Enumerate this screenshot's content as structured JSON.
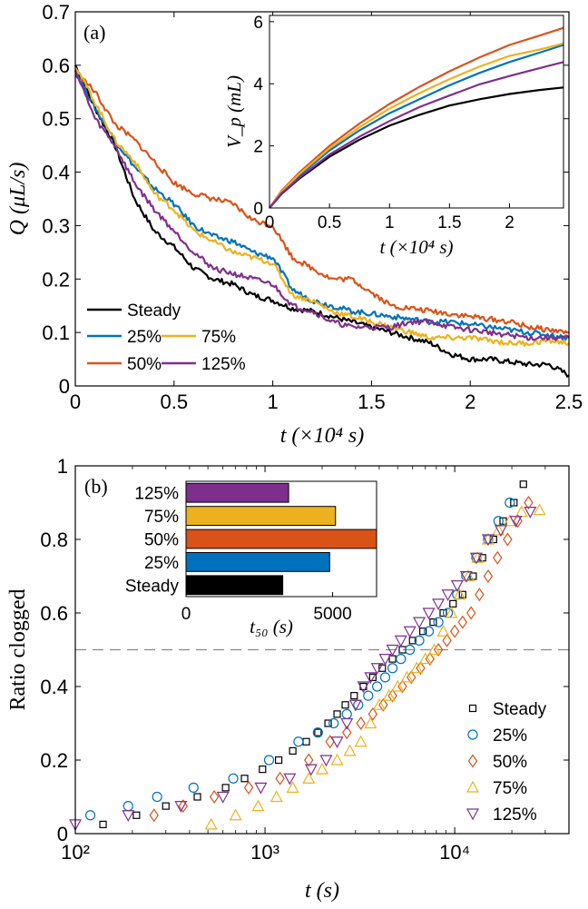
{
  "chart_data": [
    {
      "panel_label": "(a)",
      "type": "line",
      "xlabel": "t (×10⁴ s)",
      "ylabel": "Q (μL/s)",
      "xlim": [
        0,
        2.5
      ],
      "ylim": [
        0,
        0.7
      ],
      "xticks": [
        "0",
        "0.5",
        "1",
        "1.5",
        "2",
        "2.5"
      ],
      "yticks": [
        "0",
        "0.1",
        "0.2",
        "0.3",
        "0.4",
        "0.5",
        "0.6",
        "0.7"
      ],
      "legend_position": "bottom-left",
      "x": [
        0,
        0.1,
        0.2,
        0.3,
        0.4,
        0.5,
        0.6,
        0.7,
        0.8,
        0.9,
        1.0,
        1.1,
        1.2,
        1.3,
        1.4,
        1.5,
        1.6,
        1.7,
        1.8,
        1.9,
        2.0,
        2.1,
        2.2,
        2.3,
        2.4,
        2.5
      ],
      "series": [
        {
          "name": "Steady",
          "color": "#000000",
          "values": [
            0.6,
            0.52,
            0.45,
            0.35,
            0.29,
            0.26,
            0.22,
            0.2,
            0.19,
            0.17,
            0.16,
            0.145,
            0.14,
            0.13,
            0.12,
            0.11,
            0.1,
            0.09,
            0.08,
            0.06,
            0.05,
            0.05,
            0.045,
            0.04,
            0.04,
            0.02
          ]
        },
        {
          "name": "25%",
          "color": "#0072bd",
          "values": [
            0.59,
            0.52,
            0.46,
            0.41,
            0.37,
            0.34,
            0.3,
            0.28,
            0.27,
            0.25,
            0.24,
            0.18,
            0.16,
            0.15,
            0.14,
            0.135,
            0.13,
            0.125,
            0.12,
            0.12,
            0.115,
            0.11,
            0.105,
            0.1,
            0.095,
            0.09
          ]
        },
        {
          "name": "50%",
          "color": "#d95319",
          "values": [
            0.59,
            0.55,
            0.49,
            0.46,
            0.42,
            0.38,
            0.36,
            0.35,
            0.34,
            0.31,
            0.3,
            0.24,
            0.22,
            0.2,
            0.2,
            0.175,
            0.15,
            0.145,
            0.14,
            0.135,
            0.13,
            0.125,
            0.12,
            0.11,
            0.105,
            0.1
          ]
        },
        {
          "name": "75%",
          "color": "#edb120",
          "values": [
            0.6,
            0.53,
            0.46,
            0.42,
            0.36,
            0.33,
            0.29,
            0.27,
            0.25,
            0.24,
            0.23,
            0.17,
            0.16,
            0.14,
            0.13,
            0.12,
            0.11,
            0.1,
            0.09,
            0.09,
            0.09,
            0.085,
            0.08,
            0.08,
            0.085,
            0.08
          ]
        },
        {
          "name": "125%",
          "color": "#7e2f8e",
          "values": [
            0.59,
            0.5,
            0.45,
            0.38,
            0.33,
            0.29,
            0.25,
            0.22,
            0.21,
            0.2,
            0.19,
            0.15,
            0.14,
            0.12,
            0.11,
            0.11,
            0.11,
            0.12,
            0.12,
            0.11,
            0.105,
            0.1,
            0.095,
            0.09,
            0.09,
            0.09
          ]
        }
      ],
      "legend_entries": [
        "Steady",
        "25%",
        "75%",
        "50%",
        "125%"
      ],
      "inset": {
        "type": "line",
        "xlabel": "t (×10⁴ s)",
        "ylabel": "V_p (mL)",
        "xlim": [
          0,
          2.45
        ],
        "ylim": [
          0,
          6.2
        ],
        "xticks": [
          "0",
          "0.5",
          "1",
          "1.5",
          "2"
        ],
        "yticks": [
          "0",
          "2",
          "4",
          "6"
        ],
        "x": [
          0,
          0.1,
          0.25,
          0.5,
          0.75,
          1.0,
          1.25,
          1.5,
          1.75,
          2.0,
          2.25,
          2.45
        ],
        "series": [
          {
            "color": "#000000",
            "values": [
              0,
              0.45,
              0.95,
              1.65,
              2.2,
              2.65,
              3.0,
              3.3,
              3.5,
              3.67,
              3.8,
              3.88
            ]
          },
          {
            "color": "#0072bd",
            "values": [
              0,
              0.5,
              1.05,
              1.85,
              2.5,
              3.05,
              3.5,
              3.95,
              4.35,
              4.7,
              5.0,
              5.25
            ]
          },
          {
            "color": "#d95319",
            "values": [
              0,
              0.55,
              1.15,
              2.0,
              2.72,
              3.35,
              3.9,
              4.4,
              4.85,
              5.25,
              5.55,
              5.8
            ]
          },
          {
            "color": "#edb120",
            "values": [
              0,
              0.52,
              1.1,
              1.92,
              2.6,
              3.2,
              3.7,
              4.15,
              4.55,
              4.9,
              5.1,
              5.3
            ]
          },
          {
            "color": "#7e2f8e",
            "values": [
              0,
              0.47,
              0.98,
              1.72,
              2.3,
              2.8,
              3.25,
              3.62,
              3.98,
              4.25,
              4.5,
              4.7
            ]
          }
        ]
      }
    },
    {
      "panel_label": "(b)",
      "type": "scatter",
      "xlabel": "t (s)",
      "ylabel": "Ratio clogged",
      "xscale": "log",
      "xlim": [
        100,
        40000
      ],
      "ylim": [
        0,
        1
      ],
      "xticks": [
        "10²",
        "10³",
        "10⁴"
      ],
      "yticks": [
        "0",
        "0.2",
        "0.4",
        "0.6",
        "0.8",
        "1"
      ],
      "reference_line_y": 0.5,
      "legend_position": "bottom-right",
      "series": [
        {
          "name": "Steady",
          "color": "#000000",
          "marker": "square",
          "x": [
            140,
            210,
            300,
            440,
            620,
            780,
            970,
            1180,
            1400,
            1650,
            1900,
            2150,
            2400,
            2650,
            2950,
            3300,
            3700,
            4150,
            4700,
            5300,
            6000,
            6800,
            7700,
            8700,
            9800,
            11000,
            12500,
            14000,
            16000,
            18000,
            20500,
            23000
          ],
          "y": [
            0.025,
            0.05,
            0.075,
            0.1,
            0.125,
            0.15,
            0.175,
            0.2,
            0.225,
            0.25,
            0.275,
            0.3,
            0.325,
            0.35,
            0.375,
            0.4,
            0.425,
            0.45,
            0.475,
            0.5,
            0.525,
            0.55,
            0.575,
            0.6,
            0.625,
            0.65,
            0.7,
            0.75,
            0.8,
            0.85,
            0.9,
            0.95
          ]
        },
        {
          "name": "25%",
          "color": "#0072bd",
          "marker": "circle",
          "x": [
            120,
            190,
            270,
            420,
            680,
            1050,
            1500,
            1900,
            2300,
            2700,
            3100,
            3500,
            3900,
            4300,
            4700,
            5200,
            5800,
            6500,
            7300,
            8200,
            9200,
            10300,
            11500,
            13000,
            15000,
            17000,
            19500
          ],
          "y": [
            0.05,
            0.075,
            0.1,
            0.125,
            0.15,
            0.2,
            0.25,
            0.275,
            0.3,
            0.325,
            0.35,
            0.375,
            0.4,
            0.425,
            0.45,
            0.475,
            0.5,
            0.525,
            0.55,
            0.575,
            0.6,
            0.65,
            0.7,
            0.75,
            0.8,
            0.85,
            0.9
          ]
        },
        {
          "name": "50%",
          "color": "#d95319",
          "marker": "diamond",
          "x": [
            260,
            370,
            540,
            820,
            1200,
            1700,
            2200,
            2700,
            3200,
            3700,
            4200,
            4700,
            5300,
            5900,
            6600,
            7400,
            8200,
            9100,
            10000,
            11000,
            12200,
            13500,
            15000,
            16800,
            19000,
            21500,
            24500
          ],
          "y": [
            0.05,
            0.075,
            0.1,
            0.125,
            0.15,
            0.2,
            0.25,
            0.275,
            0.3,
            0.325,
            0.35,
            0.375,
            0.4,
            0.425,
            0.45,
            0.475,
            0.5,
            0.525,
            0.55,
            0.575,
            0.6,
            0.65,
            0.7,
            0.75,
            0.8,
            0.85,
            0.9
          ]
        },
        {
          "name": "75%",
          "color": "#edb120",
          "marker": "triangle-up",
          "x": [
            520,
            700,
            920,
            1150,
            1400,
            1700,
            2000,
            2400,
            2800,
            3200,
            3600,
            4000,
            4500,
            5000,
            5600,
            6300,
            7000,
            7800,
            8700,
            9600,
            10600,
            11800,
            13200,
            15000,
            17000,
            19500,
            22500,
            28000
          ],
          "y": [
            0.025,
            0.05,
            0.075,
            0.1,
            0.125,
            0.15,
            0.175,
            0.2,
            0.225,
            0.25,
            0.3,
            0.35,
            0.375,
            0.4,
            0.425,
            0.45,
            0.475,
            0.5,
            0.55,
            0.6,
            0.65,
            0.7,
            0.75,
            0.8,
            0.825,
            0.85,
            0.875,
            0.88
          ]
        },
        {
          "name": "125%",
          "color": "#7e2f8e",
          "marker": "triangle-down",
          "x": [
            100,
            190,
            360,
            600,
            950,
            1350,
            1750,
            2100,
            2400,
            2700,
            3000,
            3300,
            3600,
            3900,
            4300,
            4700,
            5200,
            5800,
            6500,
            7300,
            8200,
            9200,
            10300,
            11500,
            13000,
            15000,
            17500,
            21000,
            25000
          ],
          "y": [
            0.025,
            0.05,
            0.075,
            0.1,
            0.125,
            0.15,
            0.175,
            0.2,
            0.25,
            0.3,
            0.35,
            0.4,
            0.425,
            0.45,
            0.475,
            0.5,
            0.525,
            0.55,
            0.575,
            0.6,
            0.625,
            0.65,
            0.675,
            0.7,
            0.75,
            0.8,
            0.825,
            0.85,
            0.875
          ]
        }
      ],
      "inset": {
        "type": "bar",
        "orientation": "horizontal",
        "xlabel": "t₅₀ (s)",
        "xlim": [
          0,
          6500
        ],
        "xticks": [
          "0",
          "5000"
        ],
        "categories": [
          "125%",
          "75%",
          "50%",
          "25%",
          "Steady"
        ],
        "values": [
          3500,
          5100,
          6500,
          4900,
          3300
        ],
        "colors": [
          "#7e2f8e",
          "#edb120",
          "#d95319",
          "#0072bd",
          "#000000"
        ]
      }
    }
  ]
}
